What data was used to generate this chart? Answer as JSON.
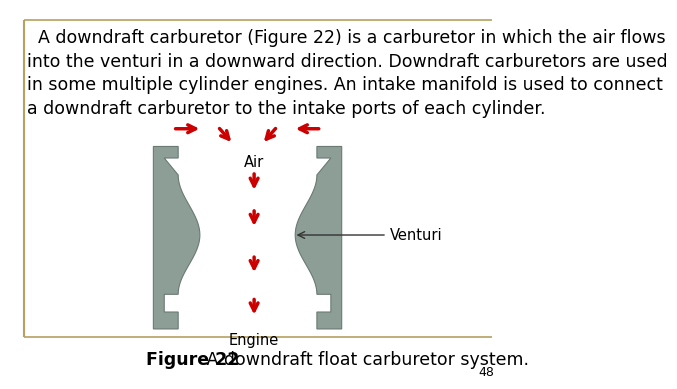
{
  "title_text": "  A downdraft carburetor (Figure 22) is a carburetor in which the air flows\ninto the venturi in a downward direction. Downdraft carburetors are used\nin some multiple cylinder engines. An intake manifold is used to connect\na downdraft carburetor to the intake ports of each cylinder.",
  "figure_caption_bold": "Figure 22",
  "figure_caption_rest": " A downdraft float carburetor system.",
  "page_number": "48",
  "carburetor_color": "#8c9e96",
  "carburetor_edge": "#6a7a72",
  "arrow_color": "#cc0000",
  "bg_color": "#ffffff",
  "border_color": "#b8a060",
  "label_air": "Air",
  "label_engine": "Engine",
  "label_venturi": "Venturi",
  "text_fontsize": 12.5,
  "label_fontsize": 10.5
}
